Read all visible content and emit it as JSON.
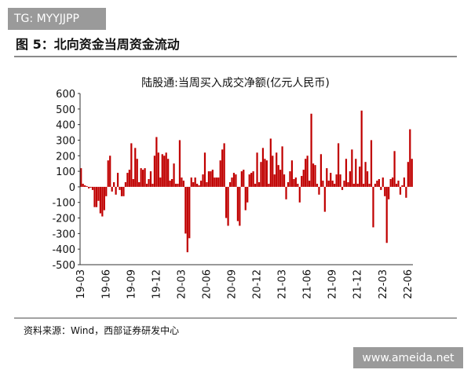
{
  "watermark_top": "TG: MYYJJPP",
  "figure_title": "图 5：北向资金当周资金流动",
  "source": "资料来源：Wind，西部证券研发中心",
  "watermark_bottom": "www.ameida.net",
  "chart_data": {
    "type": "bar",
    "title": "陆股通:当周买入成交净额(亿元人民币)",
    "color": "#c00000",
    "ylim": [
      -500,
      600
    ],
    "yticks": [
      600,
      500,
      400,
      300,
      200,
      100,
      0,
      -100,
      -200,
      -300,
      -400,
      -500
    ],
    "grid": false,
    "categories": [
      "19-03",
      null,
      null,
      null,
      null,
      null,
      null,
      null,
      null,
      null,
      null,
      null,
      null,
      "19-06",
      null,
      null,
      null,
      null,
      null,
      null,
      null,
      null,
      null,
      null,
      null,
      null,
      "19-09",
      null,
      null,
      null,
      null,
      null,
      null,
      null,
      null,
      null,
      null,
      null,
      null,
      "19-12",
      null,
      null,
      null,
      null,
      null,
      null,
      null,
      null,
      null,
      null,
      null,
      null,
      "20-03",
      null,
      null,
      null,
      null,
      null,
      null,
      null,
      null,
      null,
      null,
      null,
      null,
      "20-06",
      null,
      null,
      null,
      null,
      null,
      null,
      null,
      null,
      null,
      null,
      null,
      null,
      "20-09",
      null,
      null,
      null,
      null,
      null,
      null,
      null,
      null,
      null,
      null,
      null,
      null,
      "20-12",
      null,
      null,
      null,
      null,
      null,
      null,
      null,
      null,
      null,
      null,
      null,
      null,
      "21-03",
      null,
      null,
      null,
      null,
      null,
      null,
      null,
      null,
      null,
      null,
      null,
      null,
      "21-06",
      null,
      null,
      null,
      null,
      null,
      null,
      null,
      null,
      null,
      null,
      null,
      null,
      "21-09",
      null,
      null,
      null,
      null,
      null,
      null,
      null,
      null,
      null,
      null,
      null,
      null,
      "21-12",
      null,
      null,
      null,
      null,
      null,
      null,
      null,
      null,
      null,
      null,
      null,
      null,
      "22-03",
      null,
      null,
      null,
      null,
      null,
      null,
      null,
      null,
      null,
      null,
      null,
      null,
      "22-06",
      null,
      null
    ],
    "values": [
      120,
      20,
      10,
      5,
      -10,
      -5,
      -20,
      -130,
      -130,
      -90,
      -170,
      -190,
      -150,
      -60,
      170,
      200,
      -30,
      30,
      -50,
      90,
      -20,
      -60,
      -60,
      30,
      90,
      110,
      280,
      50,
      250,
      180,
      30,
      120,
      110,
      120,
      20,
      50,
      100,
      20,
      200,
      320,
      220,
      60,
      210,
      200,
      220,
      180,
      40,
      50,
      150,
      20,
      20,
      300,
      60,
      40,
      -300,
      -420,
      -330,
      60,
      30,
      60,
      20,
      10,
      40,
      80,
      220,
      30,
      100,
      100,
      110,
      60,
      60,
      60,
      170,
      240,
      280,
      -200,
      -250,
      30,
      60,
      90,
      80,
      -220,
      -250,
      100,
      110,
      -150,
      -100,
      80,
      90,
      100,
      20,
      220,
      30,
      160,
      250,
      180,
      170,
      20,
      310,
      200,
      80,
      220,
      140,
      110,
      260,
      80,
      -80,
      30,
      100,
      170,
      50,
      60,
      20,
      -100,
      70,
      110,
      180,
      200,
      40,
      470,
      150,
      140,
      20,
      -50,
      210,
      40,
      -160,
      120,
      40,
      90,
      40,
      20,
      80,
      280,
      80,
      -20,
      40,
      180,
      30,
      100,
      240,
      20,
      180,
      20,
      130,
      490,
      20,
      160,
      100,
      20,
      300,
      -260,
      20,
      40,
      50,
      -20,
      60,
      -60,
      -360,
      -80,
      50,
      60,
      230,
      20,
      40,
      -50,
      10,
      60,
      -70,
      160,
      370,
      180
    ]
  }
}
